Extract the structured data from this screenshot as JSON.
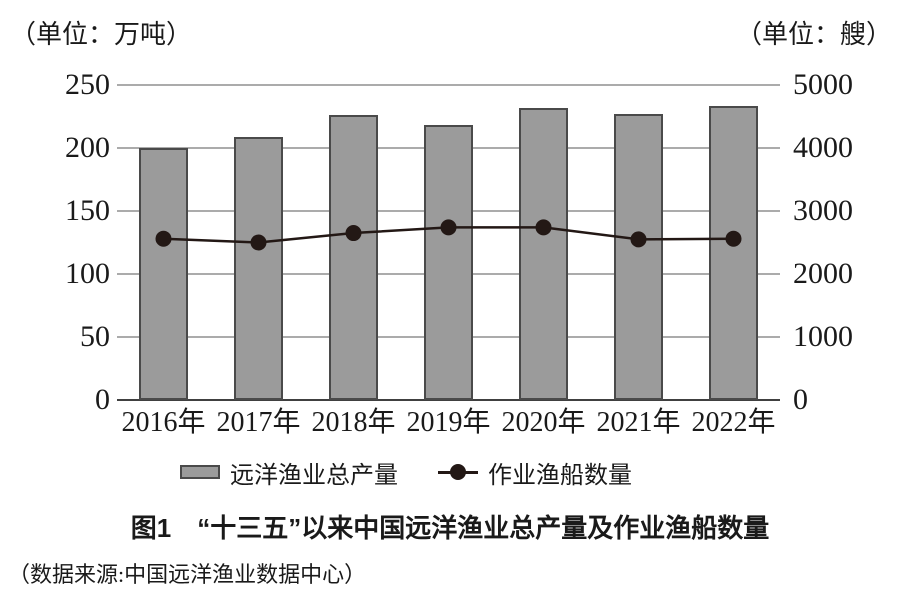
{
  "units": {
    "left": "（单位：万吨）",
    "right": "（单位：艘）"
  },
  "chart_data": {
    "type": "bar+line",
    "categories": [
      "2016年",
      "2017年",
      "2018年",
      "2019年",
      "2020年",
      "2021年",
      "2022年"
    ],
    "series": [
      {
        "name": "远洋渔业总产量",
        "type": "bar",
        "axis": "left",
        "values": [
          200,
          209,
          226,
          218,
          232,
          227,
          233
        ]
      },
      {
        "name": "作业渔船数量",
        "type": "line",
        "axis": "right",
        "values": [
          2560,
          2500,
          2650,
          2740,
          2740,
          2550,
          2560
        ]
      }
    ],
    "left_axis": {
      "unit": "万吨",
      "min": 0,
      "max": 250,
      "step": 50,
      "ticks": [
        "250",
        "200",
        "150",
        "100",
        "50",
        "0"
      ]
    },
    "right_axis": {
      "unit": "艘",
      "min": 0,
      "max": 5000,
      "step": 1000,
      "ticks": [
        "5000",
        "4000",
        "3000",
        "2000",
        "1000",
        "0"
      ]
    },
    "grid": "horizontal",
    "legend_position": "bottom",
    "title": "图1　“十三五”以来中国远洋渔业总产量及作业渔船数量"
  },
  "caption": "图1　“十三五”以来中国远洋渔业总产量及作业渔船数量",
  "source": "（数据来源:中国远洋渔业数据中心）",
  "colors": {
    "bar_fill": "#9b9b9b",
    "bar_border": "#4a4a4a",
    "line": "#231815",
    "grid": "#ababab",
    "axis": "#404040",
    "text": "#1a1a1a"
  }
}
